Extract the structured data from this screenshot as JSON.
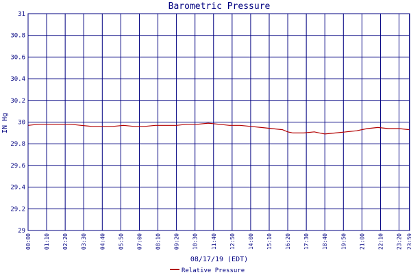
{
  "chart_data": {
    "type": "line",
    "title": "Barometric Pressure",
    "xlabel": "08/17/19 (EDT)",
    "ylabel": "IN Hg",
    "ylim": [
      29,
      31
    ],
    "y_ticks": [
      "31",
      "30.8",
      "30.6",
      "30.4",
      "30.2",
      "30",
      "29.8",
      "29.6",
      "29.4",
      "29.2",
      "29"
    ],
    "y_tick_values": [
      31,
      30.8,
      30.6,
      30.4,
      30.2,
      30,
      29.8,
      29.6,
      29.4,
      29.2,
      29
    ],
    "x_range": [
      0,
      1440
    ],
    "x_tick_labels": [
      "00:00",
      "01:10",
      "02:20",
      "03:30",
      "04:40",
      "05:50",
      "07:00",
      "08:10",
      "09:20",
      "10:30",
      "11:40",
      "12:50",
      "14:00",
      "15:10",
      "16:20",
      "17:30",
      "18:40",
      "19:50",
      "21:00",
      "22:10",
      "23:20",
      "23:59"
    ],
    "x_tick_minutes": [
      0,
      70,
      140,
      210,
      280,
      350,
      420,
      490,
      560,
      630,
      700,
      770,
      840,
      910,
      980,
      1050,
      1120,
      1190,
      1260,
      1330,
      1400,
      1439
    ],
    "grid": true,
    "legend_position": "bottom-center",
    "series": [
      {
        "name": "Relative Pressure",
        "color": "#b30000",
        "x": [
          0,
          40,
          80,
          120,
          160,
          200,
          240,
          280,
          320,
          360,
          400,
          440,
          480,
          520,
          560,
          600,
          640,
          680,
          720,
          760,
          800,
          840,
          880,
          920,
          960,
          980,
          1000,
          1040,
          1080,
          1100,
          1120,
          1160,
          1200,
          1240,
          1280,
          1320,
          1360,
          1400,
          1439
        ],
        "y": [
          29.97,
          29.98,
          29.98,
          29.98,
          29.98,
          29.97,
          29.96,
          29.96,
          29.96,
          29.97,
          29.96,
          29.96,
          29.97,
          29.97,
          29.97,
          29.98,
          29.98,
          29.99,
          29.98,
          29.97,
          29.97,
          29.96,
          29.95,
          29.94,
          29.93,
          29.91,
          29.9,
          29.9,
          29.91,
          29.9,
          29.89,
          29.9,
          29.91,
          29.92,
          29.94,
          29.95,
          29.94,
          29.94,
          29.93
        ]
      }
    ]
  }
}
